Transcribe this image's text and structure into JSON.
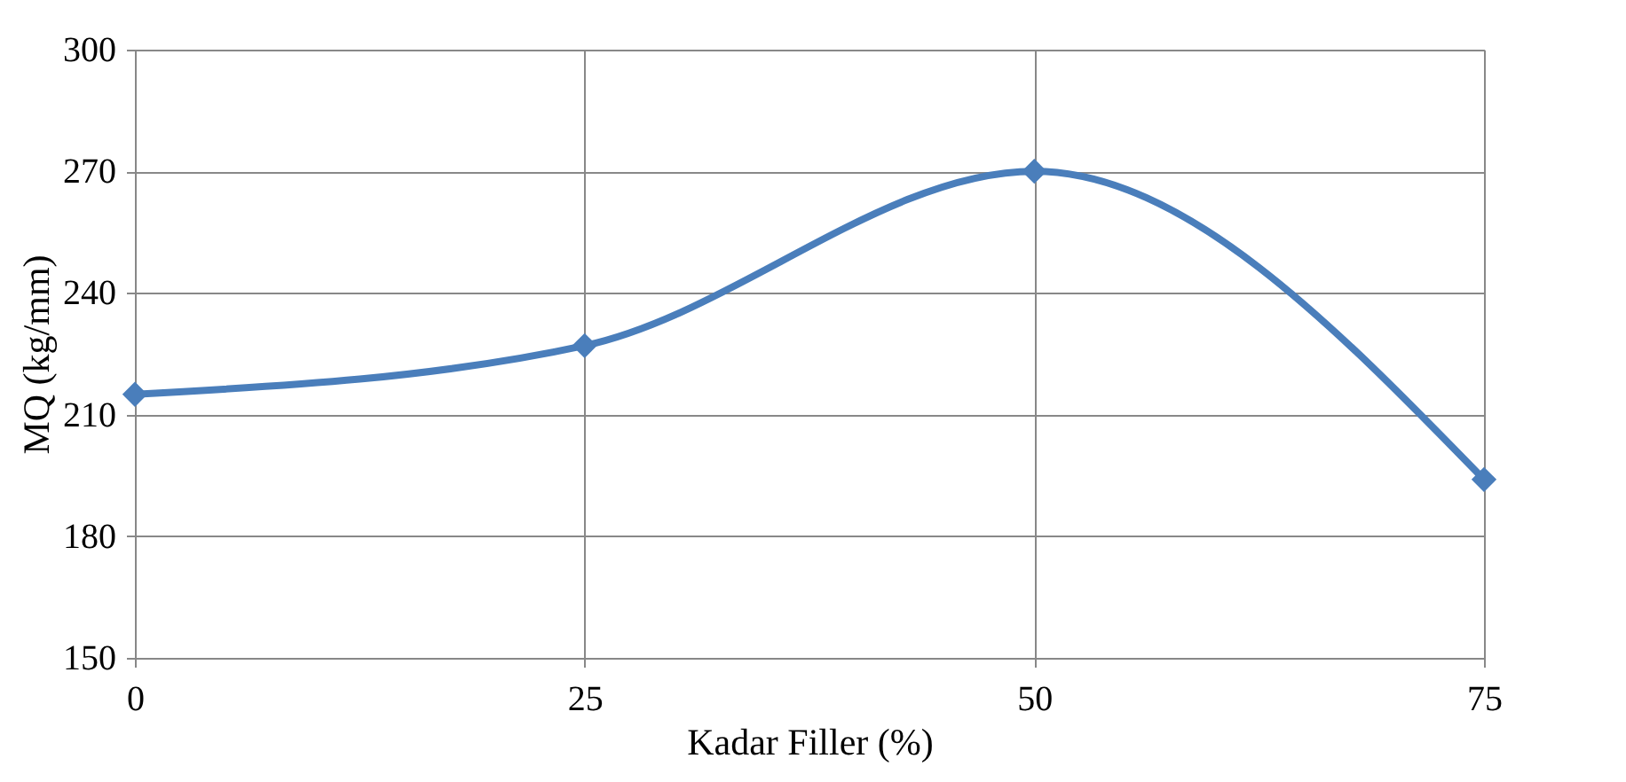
{
  "chart_data": {
    "type": "line",
    "xlabel": "Kadar Filler (%)",
    "ylabel": "MQ (kg/mm)",
    "x": [
      0,
      25,
      50,
      75
    ],
    "series": [
      {
        "color": "#4a7ebb",
        "values": [
          215,
          227,
          270,
          194
        ]
      }
    ],
    "xlim": [
      0,
      75
    ],
    "xticks": [
      0,
      25,
      50,
      75
    ],
    "ylim": [
      150,
      300
    ],
    "yticks": [
      150,
      180,
      210,
      240,
      270,
      300
    ],
    "grid": true,
    "marker": "diamond",
    "line_style": "solid"
  }
}
